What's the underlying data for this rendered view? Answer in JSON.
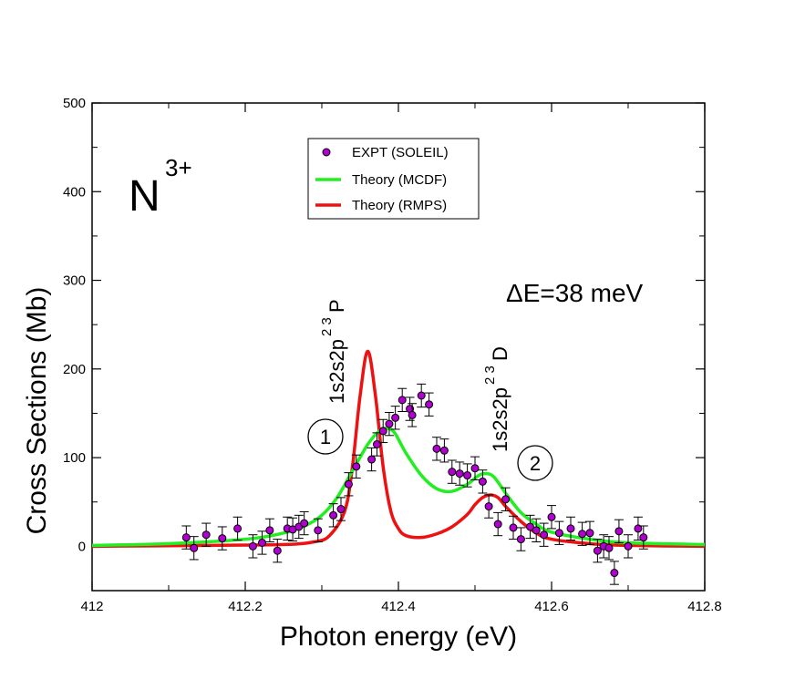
{
  "chart_data": {
    "type": "line",
    "title": "",
    "xlabel": "Photon energy (eV)",
    "ylabel": "Cross Sections (Mb)",
    "xlim": [
      412.0,
      412.8
    ],
    "ylim": [
      -50,
      500
    ],
    "xticks": [
      412.0,
      412.2,
      412.4,
      412.6,
      412.8
    ],
    "xtick_labels": [
      "412",
      "412.2",
      "412.4",
      "412.6",
      "412.8"
    ],
    "yticks": [
      0,
      100,
      200,
      300,
      400,
      500
    ],
    "ytick_labels": [
      "0",
      "100",
      "200",
      "300",
      "400",
      "500"
    ],
    "legend": {
      "position": "top-center",
      "entries": [
        {
          "label": "EXPT (SOLEIL)",
          "marker": "circle",
          "color": "#b000d0"
        },
        {
          "label": "Theory (MCDF)",
          "marker": "line",
          "color": "#22ee22"
        },
        {
          "label": "Theory (RMPS)",
          "marker": "line",
          "color": "#ee1111"
        }
      ]
    },
    "annotations": {
      "ion_base": "N",
      "ion_charge": "3+",
      "delta_e": "ΔE=38 meV",
      "peak1_base": "1s2s2p",
      "peak1_sup": "2 3",
      "peak1_term": "P",
      "peak2_base": "1s2s2p",
      "peak2_sup": "2 3",
      "peak2_term": "D",
      "circle1": "1",
      "circle2": "2"
    },
    "series": [
      {
        "name": "EXPT (SOLEIL)",
        "type": "scatter",
        "color": "#b000d0",
        "x": [
          412.123,
          412.133,
          412.149,
          412.17,
          412.19,
          412.21,
          412.222,
          412.232,
          412.242,
          412.255,
          412.262,
          412.27,
          412.277,
          412.295,
          412.315,
          412.325,
          412.335,
          412.345,
          412.365,
          412.372,
          412.38,
          412.388,
          412.396,
          412.405,
          412.415,
          412.418,
          412.43,
          412.44,
          412.45,
          412.46,
          412.47,
          412.48,
          412.49,
          412.5,
          412.51,
          412.518,
          412.53,
          412.54,
          412.55,
          412.56,
          412.572,
          412.58,
          412.59,
          412.6,
          412.61,
          412.625,
          412.64,
          412.65,
          412.66,
          412.668,
          412.675,
          412.682,
          412.688,
          412.7,
          412.713,
          412.72
        ],
        "y": [
          10,
          -2,
          13,
          9,
          20,
          0,
          4,
          18,
          -5,
          20,
          19,
          22,
          26,
          18,
          35,
          42,
          70,
          90,
          98,
          115,
          130,
          138,
          145,
          165,
          155,
          148,
          170,
          160,
          110,
          108,
          84,
          82,
          80,
          88,
          73,
          45,
          25,
          53,
          21,
          8,
          22,
          18,
          13,
          33,
          15,
          20,
          14,
          15,
          -5,
          0,
          -2,
          -30,
          17,
          0,
          20,
          10
        ],
        "err": [
          13,
          13,
          13,
          13,
          13,
          13,
          13,
          13,
          13,
          13,
          13,
          13,
          13,
          13,
          13,
          13,
          13,
          13,
          13,
          13,
          13,
          13,
          13,
          13,
          13,
          13,
          13,
          13,
          13,
          13,
          13,
          13,
          13,
          13,
          13,
          13,
          13,
          13,
          13,
          13,
          13,
          13,
          13,
          13,
          13,
          13,
          13,
          13,
          13,
          13,
          13,
          13,
          13,
          13,
          13,
          13
        ]
      },
      {
        "name": "Theory (MCDF)",
        "type": "line",
        "color": "#22ee22",
        "x": [
          412.0,
          412.1,
          412.2,
          412.25,
          412.28,
          412.3,
          412.32,
          412.34,
          412.36,
          412.375,
          412.385,
          412.395,
          412.41,
          412.43,
          412.45,
          412.47,
          412.49,
          412.505,
          412.515,
          412.525,
          412.54,
          412.56,
          412.58,
          412.6,
          412.65,
          412.7,
          412.8
        ],
        "y": [
          1,
          3,
          8,
          15,
          24,
          35,
          55,
          85,
          115,
          130,
          133,
          128,
          105,
          80,
          65,
          62,
          70,
          80,
          82,
          78,
          60,
          38,
          25,
          16,
          8,
          4,
          2
        ]
      },
      {
        "name": "Theory (RMPS)",
        "type": "line",
        "color": "#ee1111",
        "x": [
          412.0,
          412.15,
          412.25,
          412.29,
          412.31,
          412.33,
          412.34,
          412.35,
          412.36,
          412.37,
          412.38,
          412.39,
          412.4,
          412.41,
          412.43,
          412.45,
          412.47,
          412.49,
          412.5,
          412.51,
          412.52,
          412.53,
          412.54,
          412.56,
          412.58,
          412.6,
          412.65,
          412.7,
          412.8
        ],
        "y": [
          0,
          1,
          2,
          5,
          12,
          40,
          90,
          170,
          220,
          170,
          90,
          40,
          20,
          12,
          10,
          14,
          22,
          36,
          47,
          55,
          58,
          55,
          45,
          28,
          15,
          8,
          3,
          1,
          0
        ]
      }
    ]
  }
}
